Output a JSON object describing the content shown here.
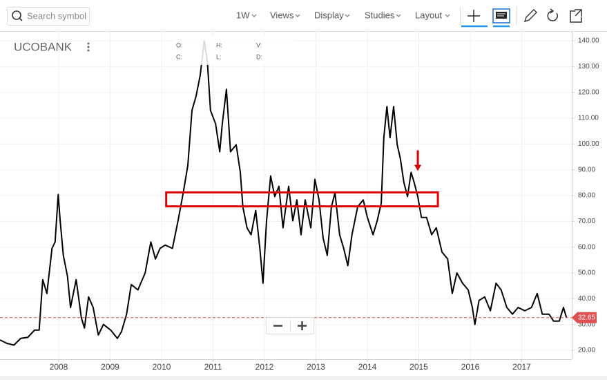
{
  "toolbar": {
    "search_placeholder": "Search symbol",
    "interval": "1W",
    "menus": [
      "Views",
      "Display",
      "Studies",
      "Layout"
    ]
  },
  "legend": {
    "symbol": "UCOBANK",
    "fields": [
      "O:",
      "H:",
      "V:",
      "C:",
      "L:",
      "D:"
    ]
  },
  "chart_data": {
    "type": "line",
    "x": [
      2006.86,
      2006.99,
      2007.13,
      2007.26,
      2007.4,
      2007.53,
      2007.62,
      2007.69,
      2007.77,
      2007.87,
      2007.93,
      2007.99,
      2008.03,
      2008.09,
      2008.17,
      2008.23,
      2008.34,
      2008.44,
      2008.5,
      2008.58,
      2008.67,
      2008.77,
      2008.87,
      2009.01,
      2009.14,
      2009.22,
      2009.32,
      2009.41,
      2009.54,
      2009.68,
      2009.79,
      2009.88,
      2009.97,
      2010.07,
      2010.21,
      2010.32,
      2010.42,
      2010.51,
      2010.59,
      2010.67,
      2010.75,
      2010.83,
      2010.89,
      2010.95,
      2011.05,
      2011.13,
      2011.18,
      2011.26,
      2011.34,
      2011.45,
      2011.53,
      2011.58,
      2011.66,
      2011.74,
      2011.83,
      2011.91,
      2011.97,
      2012.04,
      2012.12,
      2012.2,
      2012.28,
      2012.36,
      2012.47,
      2012.55,
      2012.63,
      2012.71,
      2012.79,
      2012.9,
      2012.98,
      2013.06,
      2013.14,
      2013.22,
      2013.3,
      2013.37,
      2013.46,
      2013.54,
      2013.62,
      2013.7,
      2013.81,
      2013.92,
      2014.0,
      2014.11,
      2014.19,
      2014.27,
      2014.32,
      2014.38,
      2014.44,
      2014.51,
      2014.58,
      2014.64,
      2014.71,
      2014.78,
      2014.85,
      2014.91,
      2014.98,
      2015.05,
      2015.15,
      2015.25,
      2015.34,
      2015.45,
      2015.56,
      2015.65,
      2015.74,
      2015.85,
      2015.96,
      2016.04,
      2016.09,
      2016.17,
      2016.28,
      2016.39,
      2016.5,
      2016.6,
      2016.71,
      2016.82,
      2016.93,
      2017.06,
      2017.19,
      2017.3,
      2017.4,
      2017.53,
      2017.62,
      2017.73,
      2017.81,
      2017.87
    ],
    "series": [
      {
        "name": "UCOBANK",
        "color": "#000000",
        "values": [
          24,
          22.7,
          22,
          24.6,
          25,
          27.8,
          27.8,
          47.4,
          42,
          59.5,
          62,
          80.4,
          70,
          56.8,
          48.7,
          36.6,
          47.4,
          32.6,
          28.6,
          40.7,
          36.6,
          25.9,
          30,
          27.8,
          24.6,
          27.2,
          34,
          45.5,
          43.4,
          50,
          62,
          55.4,
          59.5,
          60.8,
          59.5,
          70.2,
          81,
          91.7,
          113,
          118.5,
          126.6,
          140,
          132,
          113,
          107.8,
          97,
          107.8,
          121.2,
          97,
          99.7,
          89,
          75.6,
          67.5,
          64.8,
          74.2,
          59.5,
          46,
          70.2,
          87.6,
          79.6,
          83.6,
          67.5,
          83.6,
          70.2,
          78.3,
          64.8,
          78.3,
          67.5,
          86.3,
          78.3,
          63.5,
          56.8,
          75.6,
          81,
          64.8,
          59.5,
          52.8,
          64.8,
          75.6,
          78.3,
          71.5,
          64.8,
          70.2,
          77,
          102.4,
          114.5,
          102.4,
          114.5,
          99.7,
          94.4,
          85,
          79.6,
          89,
          85,
          79.6,
          71.5,
          71.5,
          64.8,
          67.5,
          58.1,
          55.4,
          42,
          50,
          46,
          43.4,
          36.6,
          30,
          39.3,
          40.7,
          35.3,
          46,
          43.4,
          36.6,
          34,
          36.6,
          35.3,
          36.6,
          42,
          34,
          34,
          31.3,
          31.3,
          36.6,
          32.65
        ]
      }
    ],
    "last_value": 32.65,
    "xlim": [
      2006.859,
      2017.973
    ],
    "xticks": [
      2008,
      2009,
      2010,
      2011,
      2012,
      2013,
      2014,
      2015,
      2016,
      2017
    ],
    "ylim": [
      16.5,
      143.5
    ],
    "yticks": [
      {
        "value": 20,
        "label": "20.00"
      },
      {
        "value": 30,
        "label": "30.00"
      },
      {
        "value": 40,
        "label": "40.00"
      },
      {
        "value": 50,
        "label": "50.00"
      },
      {
        "value": 60,
        "label": "60.00"
      },
      {
        "value": 70,
        "label": "70.00"
      },
      {
        "value": 80,
        "label": "80.00"
      },
      {
        "value": 90,
        "label": "90.00"
      },
      {
        "value": 100,
        "label": "100.00"
      },
      {
        "value": 110,
        "label": "110.00"
      },
      {
        "value": 120,
        "label": "120.00"
      },
      {
        "value": 130,
        "label": "130.00"
      },
      {
        "value": 140,
        "label": "140.00"
      }
    ],
    "grid": true,
    "zone": {
      "x": [
        2010.09,
        2015.37
      ],
      "y": [
        75.8,
        81.2
      ],
      "color": "#e00000"
    },
    "arrow": {
      "x": 2014.98,
      "y": 89.5,
      "color": "#e00000"
    }
  }
}
